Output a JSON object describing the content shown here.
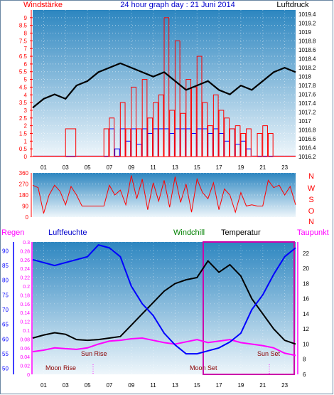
{
  "header": {
    "left_label": "Windstärke",
    "title": "24 hour graph day : 21 Juni 2014",
    "right_label": "Luftdruck"
  },
  "colors": {
    "wind": "#ff0000",
    "gust": "#0000ff",
    "pressure": "#000000",
    "humidity": "#0000ff",
    "temperature": "#000000",
    "dewpoint": "#ff00ff",
    "rain": "#ff00ff",
    "windchill": "#008000",
    "bg_top": "#2d86c0",
    "bg_bottom": "#eef6fb"
  },
  "chart_data": [
    {
      "type": "line",
      "name": "wind-pressure",
      "x_ticks": [
        "01",
        "03",
        "05",
        "07",
        "09",
        "11",
        "13",
        "15",
        "17",
        "19",
        "21",
        "23"
      ],
      "y_left_ticks": [
        "0",
        "0.5",
        "1",
        "1.5",
        "2",
        "2.5",
        "3",
        "3.5",
        "4",
        "4.5",
        "5",
        "5.5",
        "6",
        "6.5",
        "7",
        "7.5",
        "8",
        "8.5",
        "9"
      ],
      "y_right_ticks": [
        "1016.2",
        "1016.4",
        "1016.6",
        "1016.8",
        "1017",
        "1017.2",
        "1017.4",
        "1017.6",
        "1017.8",
        "1018",
        "1018.2",
        "1018.4",
        "1018.6",
        "1018.8",
        "1019",
        "1019.2",
        "1019.4"
      ],
      "ylim_left": [
        0,
        9.5
      ],
      "ylim_right": [
        1016.2,
        1019.5
      ],
      "series": [
        {
          "x": [
            0,
            1,
            2,
            3,
            4,
            5,
            6,
            7,
            8,
            9,
            10,
            11,
            12,
            13,
            14,
            15,
            16,
            17,
            18,
            19,
            20,
            21,
            22,
            23,
            24
          ],
          "values": [
            1017.3,
            1017.5,
            1017.6,
            1017.5,
            1017.8,
            1017.9,
            1018.1,
            1018.2,
            1018.3,
            1018.2,
            1018.1,
            1018.0,
            1018.1,
            1017.9,
            1017.7,
            1017.8,
            1017.9,
            1017.7,
            1017.6,
            1017.8,
            1017.7,
            1017.9,
            1018.1,
            1018.2,
            1018.1
          ]
        },
        {
          "x": [
            0,
            1,
            2,
            3,
            4,
            5,
            6,
            6.5,
            7,
            7.5,
            8,
            8.5,
            9,
            9.5,
            10,
            10.5,
            11,
            11.5,
            12,
            12.5,
            13,
            13.5,
            14,
            14.5,
            15,
            15.5,
            16,
            16.5,
            17,
            17.5,
            18,
            18.5,
            19,
            19.5,
            20,
            20.5,
            21,
            21.5,
            22,
            23,
            24
          ],
          "values": [
            0,
            0,
            0,
            1.8,
            0,
            0,
            0,
            1.8,
            2.5,
            0,
            3.5,
            1.8,
            4.5,
            1.8,
            5.0,
            2.5,
            3.5,
            4.0,
            9.0,
            3.0,
            7.5,
            2.8,
            5.0,
            4.5,
            6.5,
            3.5,
            2.0,
            4.0,
            3.0,
            2.5,
            1.8,
            2.0,
            1.5,
            1.8,
            0,
            1.5,
            2.0,
            1.5,
            0,
            0,
            0
          ]
        },
        {
          "x": [
            0,
            1,
            2,
            3,
            4,
            5,
            6,
            6.5,
            7,
            7.5,
            8,
            8.5,
            9,
            9.5,
            10,
            10.5,
            11,
            11.5,
            12,
            12.5,
            13,
            13.5,
            14,
            14.5,
            15,
            15.5,
            16,
            16.5,
            17,
            17.5,
            18,
            18.5,
            19,
            19.5,
            20,
            20.5,
            21,
            21.5,
            22,
            23,
            24
          ],
          "values": [
            0,
            0,
            0,
            0,
            0,
            0,
            0,
            0,
            1.8,
            0.5,
            1.8,
            1.0,
            1.8,
            0.8,
            1.8,
            1.5,
            1.8,
            1.8,
            1.8,
            1.5,
            1.8,
            1.8,
            1.8,
            1.5,
            1.8,
            1.8,
            1.5,
            1.8,
            1.5,
            1.0,
            1.8,
            0.8,
            1.0,
            0.5,
            0,
            0,
            0,
            0,
            0,
            0,
            0
          ]
        }
      ]
    },
    {
      "type": "line",
      "name": "wind-direction",
      "y_left_ticks": [
        "360",
        "270",
        "180",
        "90",
        "0"
      ],
      "y_right_ticks": [
        "N",
        "W",
        "S",
        "O",
        "N"
      ],
      "ylim_left": [
        0,
        360
      ],
      "series": [
        {
          "x": [
            0,
            0.5,
            1,
            1.5,
            2,
            2.5,
            3,
            3.5,
            4,
            4.5,
            5,
            5.5,
            6,
            6.5,
            7,
            7.5,
            8,
            8.5,
            9,
            9.5,
            10,
            10.5,
            11,
            11.5,
            12,
            12.5,
            13,
            13.5,
            14,
            14.5,
            15,
            15.5,
            16,
            16.5,
            17,
            17.5,
            18,
            18.5,
            19,
            19.5,
            20,
            20.5,
            21,
            21.5,
            22,
            22.5,
            23,
            23.5,
            24
          ],
          "values": [
            260,
            240,
            30,
            180,
            260,
            210,
            100,
            250,
            180,
            90,
            90,
            90,
            90,
            90,
            260,
            180,
            220,
            100,
            340,
            150,
            310,
            60,
            280,
            130,
            300,
            80,
            330,
            120,
            270,
            40,
            310,
            200,
            150,
            280,
            60,
            230,
            180,
            40,
            200,
            90,
            100,
            90,
            90,
            300,
            240,
            260,
            180,
            250,
            100
          ]
        }
      ]
    },
    {
      "type": "line",
      "name": "humidity-temperature",
      "legend": [
        "Regen",
        "Luftfeuchte",
        "Windchill",
        "Temperatur",
        "Taupunkt"
      ],
      "y_rain_ticks": [
        "0",
        "0.02",
        "0.04",
        "0.06",
        "0.08",
        "0.1",
        "0.12",
        "0.14",
        "0.16",
        "0.18",
        "0.2",
        "0.22",
        "0.24",
        "0.26",
        "0.28",
        "0.3"
      ],
      "y_humidity_ticks": [
        "50",
        "55",
        "60",
        "65",
        "70",
        "75",
        "80",
        "85",
        "90"
      ],
      "y_temperature_ticks": [
        "6",
        "8",
        "10",
        "12",
        "14",
        "16",
        "18",
        "20",
        "22"
      ],
      "ylim_rain": [
        0,
        0.3
      ],
      "ylim_humidity": [
        48,
        93
      ],
      "ylim_temperature": [
        6,
        23.5
      ],
      "annotations": [
        "Sun Rise",
        "Sun Set",
        "Moon Rise",
        "Moon Set"
      ],
      "series": [
        {
          "x": [
            0,
            1,
            2,
            3,
            4,
            5,
            6,
            7,
            8,
            9,
            10,
            11,
            12,
            13,
            14,
            15,
            16,
            17,
            18,
            19,
            20,
            21,
            22,
            23,
            24
          ],
          "values": [
            87,
            86,
            85,
            86,
            87,
            88,
            92,
            91,
            88,
            78,
            72,
            68,
            62,
            58,
            55,
            55,
            56,
            57,
            59,
            62,
            70,
            75,
            82,
            88,
            91
          ]
        },
        {
          "x": [
            0,
            1,
            2,
            3,
            4,
            5,
            6,
            7,
            8,
            9,
            10,
            11,
            12,
            13,
            14,
            15,
            16,
            17,
            18,
            19,
            20,
            21,
            22,
            23,
            24
          ],
          "values": [
            10.8,
            11.2,
            11.5,
            11.3,
            10.6,
            10.5,
            10.6,
            10.8,
            11.0,
            12.5,
            14.0,
            15.5,
            17.0,
            18.0,
            18.5,
            18.8,
            21.0,
            19.5,
            20.5,
            19.0,
            16.0,
            14.0,
            12.0,
            10.5,
            10.0
          ]
        },
        {
          "x": [
            0,
            1,
            2,
            3,
            4,
            5,
            6,
            7,
            8,
            9,
            10,
            11,
            12,
            13,
            14,
            15,
            16,
            17,
            18,
            19,
            20,
            21,
            22,
            23,
            24
          ],
          "values": [
            9.0,
            9.2,
            9.5,
            9.4,
            9.3,
            9.5,
            10.0,
            10.4,
            10.5,
            10.7,
            10.8,
            10.5,
            10.2,
            10.0,
            10.3,
            10.6,
            10.2,
            10.4,
            10.6,
            10.2,
            10.0,
            9.8,
            9.5,
            8.8,
            8.5
          ]
        }
      ]
    }
  ]
}
